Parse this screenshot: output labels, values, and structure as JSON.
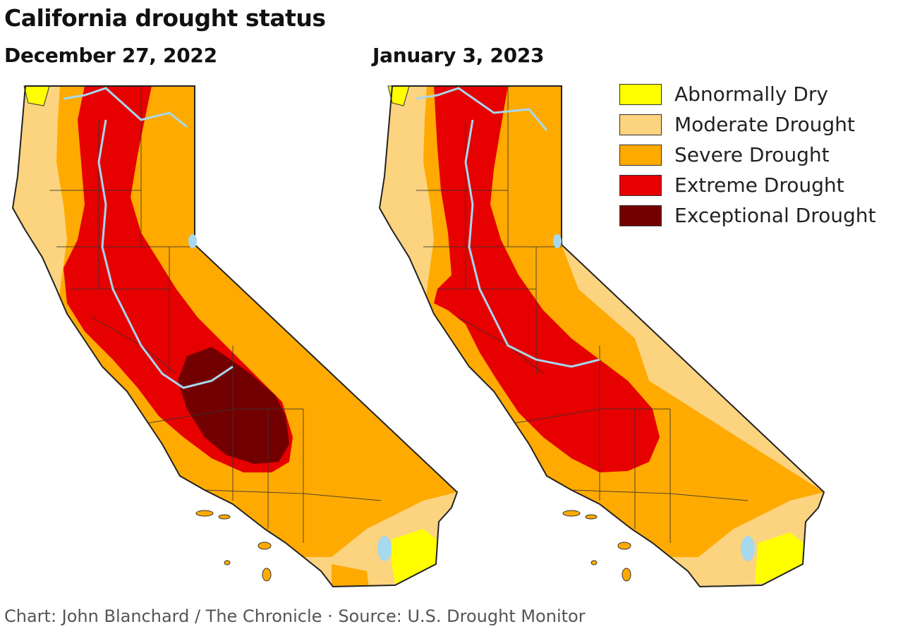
{
  "title": "California drought status",
  "maps": [
    {
      "date": "December 27, 2022"
    },
    {
      "date": "January 3, 2023"
    }
  ],
  "legend": [
    {
      "label": "Abnormally Dry",
      "color": "#ffff00"
    },
    {
      "label": "Moderate Drought",
      "color": "#fcd37f"
    },
    {
      "label": "Severe Drought",
      "color": "#ffaa00"
    },
    {
      "label": "Extreme Drought",
      "color": "#e60000"
    },
    {
      "label": "Exceptional Drought",
      "color": "#730000"
    }
  ],
  "water_color": "#a6d8ee",
  "credit": "Chart: John Blanchard / The Chronicle · Source: U.S. Drought Monitor"
}
